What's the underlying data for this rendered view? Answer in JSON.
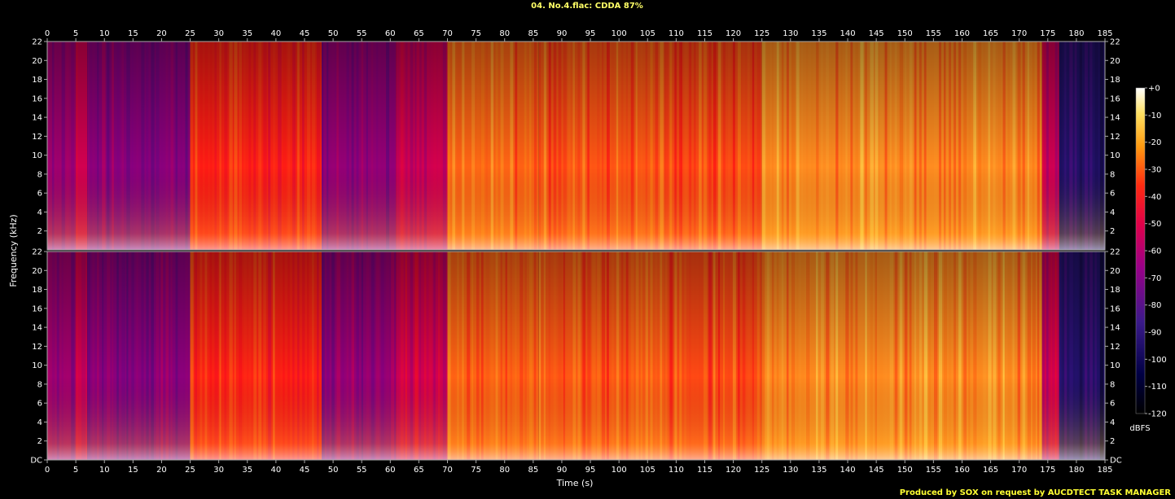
{
  "chart_data": {
    "type": "heatmap",
    "title": "04. No.4.flac: CDDA 87%",
    "xlabel": "Time (s)",
    "ylabel": "Frequency (kHz)",
    "xlim": [
      0,
      185
    ],
    "x_ticks": [
      0,
      5,
      10,
      15,
      20,
      25,
      30,
      35,
      40,
      45,
      50,
      55,
      60,
      65,
      70,
      75,
      80,
      85,
      90,
      95,
      100,
      105,
      110,
      115,
      120,
      125,
      130,
      135,
      140,
      145,
      150,
      155,
      160,
      165,
      170,
      175,
      180,
      185
    ],
    "y_ticks": [
      "DC",
      "2",
      "4",
      "6",
      "8",
      "10",
      "12",
      "14",
      "16",
      "18",
      "20",
      "22"
    ],
    "ylim_khz": [
      0,
      22
    ],
    "channels": 2,
    "colorbar": {
      "label": "dBFS",
      "range": [
        -120,
        0
      ],
      "ticks": [
        "+0",
        "-10",
        "-20",
        "-30",
        "-40",
        "-50",
        "-60",
        "-70",
        "-80",
        "-90",
        "-100",
        "-110",
        "-120"
      ]
    },
    "colors": {
      "background": "#000000",
      "low": "#000033",
      "mid_low": "#3a1a8a",
      "mid": "#b0006a",
      "mid_high": "#ff1a1a",
      "high": "#ffc020",
      "peak": "#ffffff"
    },
    "segments": [
      {
        "start": 0,
        "end": 5,
        "level": 0.45
      },
      {
        "start": 5,
        "end": 7,
        "level": 0.55
      },
      {
        "start": 7,
        "end": 25,
        "level": 0.4
      },
      {
        "start": 25,
        "end": 48,
        "level": 0.72
      },
      {
        "start": 48,
        "end": 61,
        "level": 0.42
      },
      {
        "start": 61,
        "end": 70,
        "level": 0.55
      },
      {
        "start": 70,
        "end": 86,
        "level": 0.82
      },
      {
        "start": 86,
        "end": 108,
        "level": 0.8
      },
      {
        "start": 108,
        "end": 125,
        "level": 0.78
      },
      {
        "start": 125,
        "end": 174,
        "level": 0.88
      },
      {
        "start": 174,
        "end": 177,
        "level": 0.55
      },
      {
        "start": 177,
        "end": 185,
        "level": 0.15
      }
    ],
    "credit": "Produced by SOX on request by AUCDTECT TASK MANAGER"
  }
}
